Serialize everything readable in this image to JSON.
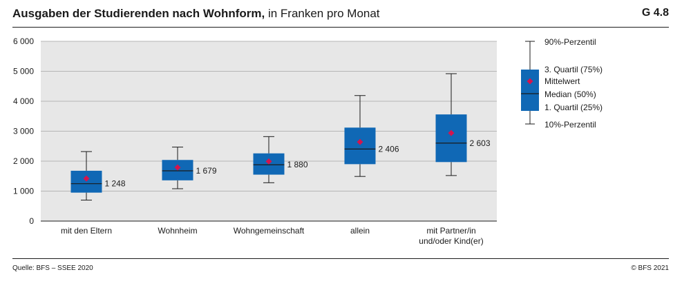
{
  "header": {
    "title_bold": "Ausgaben der Studierenden nach Wohnform,",
    "title_rest": " in Franken pro Monat",
    "figure_id": "G 4.8"
  },
  "footer": {
    "source": "Quelle: BFS – SSEE 2020",
    "copyright": "© BFS 2021"
  },
  "colors": {
    "box_fill": "#1068b5",
    "mean_marker": "#d3154f",
    "plot_background": "#e7e7e7",
    "gridline": "#b5b5b5"
  },
  "legend": {
    "p90": "90%-Perzentil",
    "q3": "3. Quartil (75%)",
    "mean": "Mittelwert",
    "median": "Median (50%)",
    "q1": "1. Quartil (25%)",
    "p10": "10%-Perzentil"
  },
  "chart_data": {
    "type": "boxplot",
    "title": "Ausgaben der Studierenden nach Wohnform, in Franken pro Monat",
    "xlabel": "",
    "ylabel": "",
    "ylim": [
      0,
      6000
    ],
    "yticks": [
      0,
      1000,
      2000,
      3000,
      4000,
      5000,
      6000
    ],
    "ytick_labels": [
      "0",
      "1 000",
      "2 000",
      "3 000",
      "4 000",
      "5 000",
      "6 000"
    ],
    "grid": true,
    "legend_position": "right",
    "categories": [
      {
        "label_lines": [
          "mit den Eltern"
        ],
        "p10": 700,
        "q1": 950,
        "median": 1248,
        "q3": 1680,
        "p90": 2320,
        "mean": 1420,
        "median_label": "1 248"
      },
      {
        "label_lines": [
          "Wohnheim"
        ],
        "p10": 1080,
        "q1": 1360,
        "median": 1679,
        "q3": 2040,
        "p90": 2470,
        "mean": 1790,
        "median_label": "1 679"
      },
      {
        "label_lines": [
          "Wohngemeinschaft"
        ],
        "p10": 1280,
        "q1": 1550,
        "median": 1880,
        "q3": 2260,
        "p90": 2820,
        "mean": 1990,
        "median_label": "1 880"
      },
      {
        "label_lines": [
          "allein"
        ],
        "p10": 1490,
        "q1": 1900,
        "median": 2406,
        "q3": 3120,
        "p90": 4190,
        "mean": 2640,
        "median_label": "2 406"
      },
      {
        "label_lines": [
          "mit Partner/in",
          "und/oder Kind(er)"
        ],
        "p10": 1520,
        "q1": 1970,
        "median": 2603,
        "q3": 3560,
        "p90": 4920,
        "mean": 2940,
        "median_label": "2 603"
      }
    ]
  }
}
